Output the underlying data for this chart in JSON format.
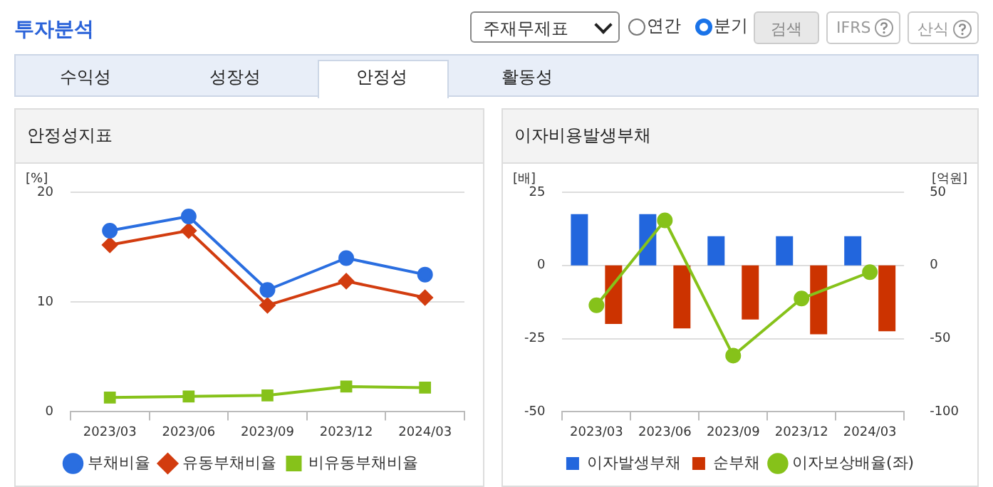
{
  "chart_data": [
    {
      "type": "line",
      "title": "안정성지표",
      "ylabel": "[%]",
      "categories": [
        "2023/03",
        "2023/06",
        "2023/09",
        "2023/12",
        "2024/03"
      ],
      "series": [
        {
          "name": "부채비율",
          "color": "#2a6ee0",
          "marker": "circle",
          "values": [
            16.5,
            17.8,
            11.1,
            14.0,
            12.5
          ]
        },
        {
          "name": "유동부채비율",
          "color": "#d23c0f",
          "marker": "diamond",
          "values": [
            15.2,
            16.5,
            9.7,
            11.9,
            10.4
          ]
        },
        {
          "name": "비유동부채비율",
          "color": "#86c21a",
          "marker": "square",
          "values": [
            1.3,
            1.4,
            1.5,
            2.3,
            2.2
          ]
        }
      ],
      "ylim": [
        0,
        20
      ],
      "yticks": [
        0,
        10,
        20
      ],
      "grid": "y",
      "legend": "bottom",
      "annotations": [
        "투자분석",
        "주재무제표",
        "연간",
        "분기",
        "검색",
        "IFRS",
        "산식",
        "수익성",
        "성장성",
        "안정성",
        "활동성"
      ]
    },
    {
      "type": "bar",
      "title": "이자비용발생부채",
      "ylabel": "[배]",
      "y2label": "[억원]",
      "categories": [
        "2023/03",
        "2023/06",
        "2023/09",
        "2023/12",
        "2024/03"
      ],
      "series": [
        {
          "name": "이자발생부채",
          "color": "#2266dd",
          "axis": "y2",
          "values": [
            35,
            35,
            20,
            20,
            20
          ]
        },
        {
          "name": "순부채",
          "color": "#cc3300",
          "axis": "y2",
          "values": [
            -40,
            -43,
            -37,
            -47,
            -45
          ]
        },
        {
          "name": "이자보상배율(좌)",
          "type": "line",
          "color": "#86c21a",
          "marker": "circle",
          "values": [
            -13.6,
            15.4,
            -30.8,
            -11.3,
            -2.3
          ]
        }
      ],
      "ylim": [
        -50,
        25
      ],
      "yticks": [
        -50,
        -25,
        0,
        25
      ],
      "y2lim": [
        -100,
        50
      ],
      "y2ticks": [
        -100,
        -50,
        0,
        50
      ],
      "grid": "y",
      "legend": "bottom"
    }
  ]
}
